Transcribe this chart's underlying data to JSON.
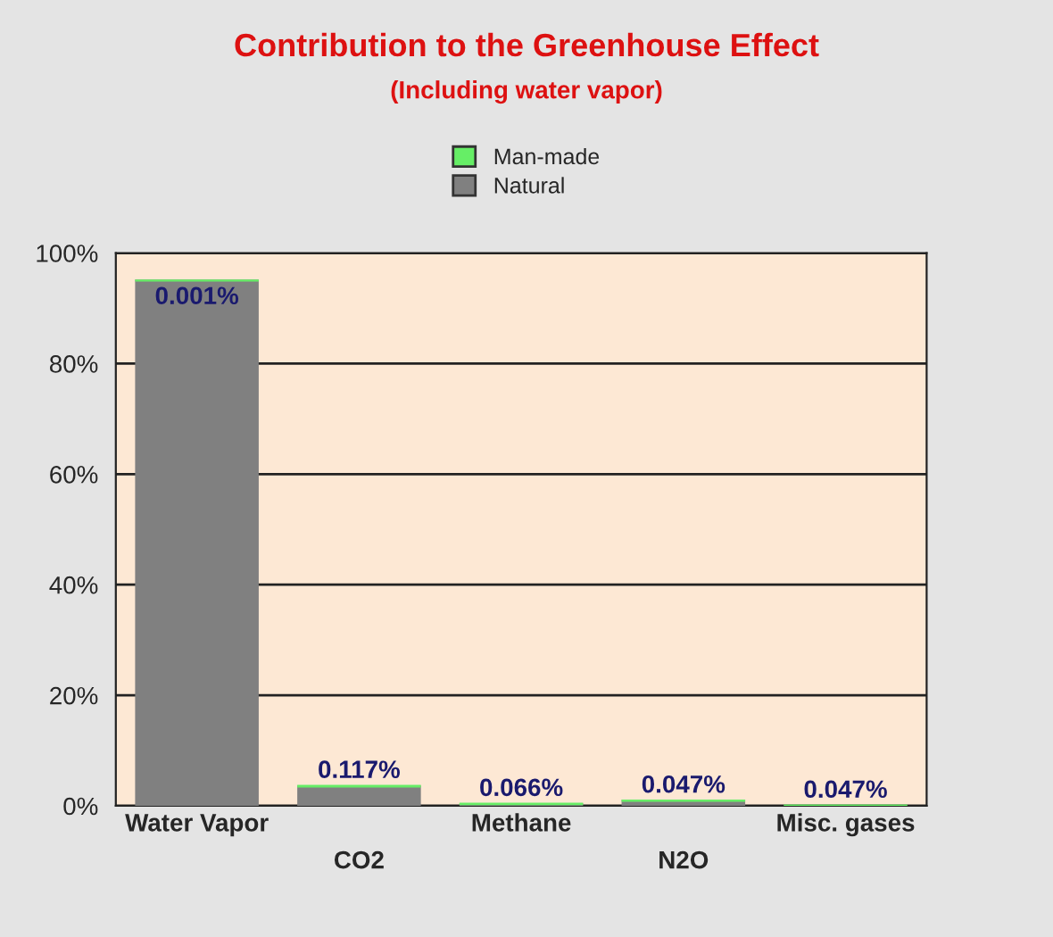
{
  "chart_data": {
    "type": "bar",
    "title": "Contribution to the Greenhouse Effect",
    "subtitle": "(Including water vapor)",
    "categories": [
      "Water Vapor",
      "CO2",
      "Methane",
      "N2O",
      "Misc. gases"
    ],
    "stacked": true,
    "series": [
      {
        "name": "Natural",
        "color": "#808080",
        "values": [
          95,
          3.5,
          0.3,
          0.9,
          0
        ]
      },
      {
        "name": "Man-made",
        "color": "#66ee66",
        "values": [
          0.001,
          0.117,
          0.066,
          0.047,
          0.047
        ],
        "value_labels": [
          "0.001%",
          "0.117%",
          "0.066%",
          "0.047%",
          "0.047%"
        ]
      }
    ],
    "ylim": [
      0,
      100
    ],
    "yticks": [
      {
        "value": 0,
        "label": "0%"
      },
      {
        "value": 20,
        "label": "20%"
      },
      {
        "value": 40,
        "label": "40%"
      },
      {
        "value": 60,
        "label": "60%"
      },
      {
        "value": 80,
        "label": "80%"
      },
      {
        "value": 100,
        "label": "100%"
      }
    ],
    "grid": "y",
    "legend": "top"
  }
}
